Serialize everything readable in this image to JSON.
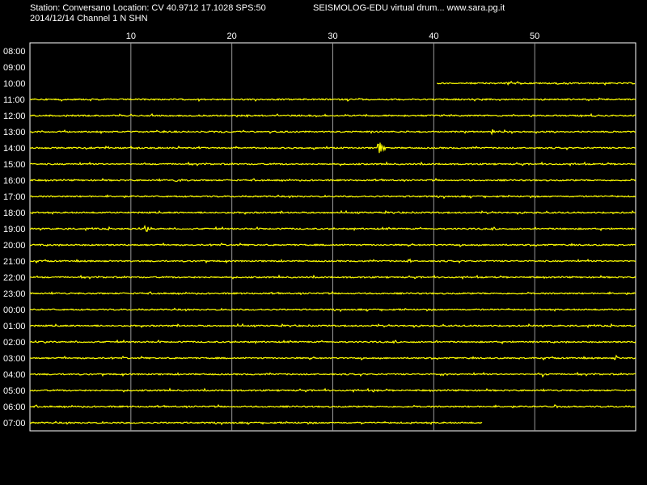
{
  "header": {
    "station_line": "Station: Conversano Location: CV 40.9712 17.1028 SPS:50",
    "date_line": "2014/12/14  Channel 1 N SHN",
    "brand": "SEISMOLOG-EDU virtual drum... www.sara.pg.it"
  },
  "colors": {
    "background": "#000000",
    "trace": "#ffff00",
    "grid": "#ffffff",
    "text": "#ffffff"
  },
  "chart_data": {
    "type": "line",
    "title": "",
    "xlabel": "",
    "ylabel": "",
    "x_unit": "minutes",
    "xlim": [
      0,
      60
    ],
    "x_ticks": [
      10,
      20,
      30,
      40,
      50
    ],
    "grid": true,
    "series": [
      {
        "hour": "08:00",
        "start_min": null,
        "end_min": null,
        "events": []
      },
      {
        "hour": "09:00",
        "start_min": null,
        "end_min": null,
        "events": []
      },
      {
        "hour": "10:00",
        "start_min": 40.3,
        "end_min": 60,
        "events": [
          {
            "t": 47.5,
            "amp": 3
          }
        ]
      },
      {
        "hour": "11:00",
        "start_min": 0,
        "end_min": 60,
        "events": []
      },
      {
        "hour": "12:00",
        "start_min": 0,
        "end_min": 60,
        "events": []
      },
      {
        "hour": "13:00",
        "start_min": 0,
        "end_min": 60,
        "events": [
          {
            "t": 45.8,
            "amp": 3
          },
          {
            "t": 19.0,
            "amp": 2
          }
        ]
      },
      {
        "hour": "14:00",
        "start_min": 0,
        "end_min": 60,
        "events": [
          {
            "t": 34.6,
            "amp": 9
          },
          {
            "t": 5.6,
            "amp": 3
          }
        ]
      },
      {
        "hour": "15:00",
        "start_min": 0,
        "end_min": 60,
        "events": []
      },
      {
        "hour": "16:00",
        "start_min": 0,
        "end_min": 60,
        "events": [
          {
            "t": 14.5,
            "amp": 3
          }
        ]
      },
      {
        "hour": "17:00",
        "start_min": 0,
        "end_min": 60,
        "events": []
      },
      {
        "hour": "18:00",
        "start_min": 0,
        "end_min": 60,
        "events": []
      },
      {
        "hour": "19:00",
        "start_min": 0,
        "end_min": 60,
        "events": [
          {
            "t": 11.5,
            "amp": 5
          }
        ]
      },
      {
        "hour": "20:00",
        "start_min": 0,
        "end_min": 60,
        "events": []
      },
      {
        "hour": "21:00",
        "start_min": 0,
        "end_min": 60,
        "events": [
          {
            "t": 37.5,
            "amp": 3
          }
        ]
      },
      {
        "hour": "22:00",
        "start_min": 0,
        "end_min": 60,
        "events": []
      },
      {
        "hour": "23:00",
        "start_min": 0,
        "end_min": 60,
        "events": []
      },
      {
        "hour": "00:00",
        "start_min": 0,
        "end_min": 60,
        "events": []
      },
      {
        "hour": "01:00",
        "start_min": 0,
        "end_min": 60,
        "events": []
      },
      {
        "hour": "02:00",
        "start_min": 0,
        "end_min": 60,
        "events": []
      },
      {
        "hour": "03:00",
        "start_min": 0,
        "end_min": 60,
        "events": [
          {
            "t": 58.0,
            "amp": 5
          }
        ]
      },
      {
        "hour": "04:00",
        "start_min": 0,
        "end_min": 60,
        "events": [
          {
            "t": 40.7,
            "amp": 5
          },
          {
            "t": 50.8,
            "amp": 5
          }
        ]
      },
      {
        "hour": "05:00",
        "start_min": 0,
        "end_min": 60,
        "events": [
          {
            "t": 34.0,
            "amp": 3
          }
        ]
      },
      {
        "hour": "06:00",
        "start_min": 0,
        "end_min": 60,
        "events": [
          {
            "t": 52.0,
            "amp": 2
          }
        ]
      },
      {
        "hour": "07:00",
        "start_min": 0,
        "end_min": 44.8,
        "events": [
          {
            "t": 33.0,
            "amp": 2
          }
        ]
      }
    ]
  }
}
